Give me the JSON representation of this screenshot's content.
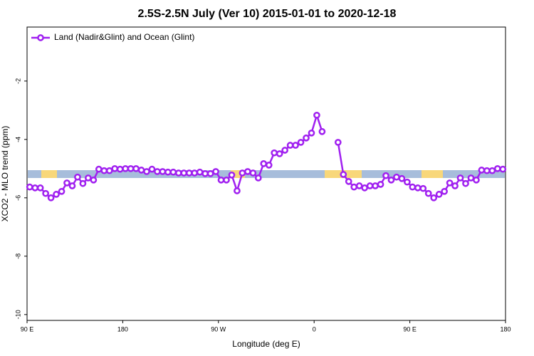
{
  "chart_data": {
    "type": "line",
    "title": "2.5S-2.5N July (Ver 10)   2015-01-01 to 2020-12-18",
    "xlabel": "Longitude (deg E)",
    "ylabel": "XCO2 - MLO trend (ppm)",
    "x": [
      92.5,
      97.5,
      102.5,
      107.5,
      112.5,
      117.5,
      122.5,
      127.5,
      132.5,
      137.5,
      142.5,
      147.5,
      152.5,
      157.5,
      162.5,
      167.5,
      172.5,
      177.5,
      182.5,
      187.5,
      192.5,
      197.5,
      202.5,
      207.5,
      212.5,
      217.5,
      222.5,
      227.5,
      232.5,
      237.5,
      242.5,
      247.5,
      252.5,
      257.5,
      262.5,
      267.5,
      272.5,
      277.5,
      282.5,
      287.5,
      292.5,
      297.5,
      302.5,
      307.5,
      312.5,
      317.5,
      322.5,
      327.5,
      332.5,
      337.5,
      342.5,
      347.5,
      352.5,
      357.5,
      362.5,
      367.5,
      372.5,
      377.5,
      382.5,
      387.5,
      392.5,
      397.5,
      402.5,
      407.5,
      412.5,
      417.5,
      422.5,
      427.5,
      432.5,
      437.5,
      442.5,
      447.5,
      452.5,
      457.5,
      462.5,
      467.5,
      472.5,
      477.5,
      482.5,
      487.5,
      492.5,
      497.5,
      502.5,
      507.5,
      512.5,
      517.5,
      522.5,
      527.5,
      532.5,
      537.5
    ],
    "series": [
      {
        "name": "Land (Nadir&Glint) and Ocean (Glint)",
        "color": "#a020f0",
        "values": [
          -5.63,
          -5.66,
          -5.66,
          -5.85,
          -6.0,
          -5.88,
          -5.78,
          -5.49,
          -5.59,
          -5.29,
          -5.51,
          -5.32,
          -5.39,
          -5.02,
          -5.07,
          -5.07,
          -5.0,
          -5.02,
          -5.0,
          -5.0,
          -5.0,
          -5.05,
          -5.1,
          -5.02,
          -5.1,
          -5.1,
          -5.12,
          -5.12,
          -5.15,
          -5.15,
          -5.15,
          -5.15,
          -5.12,
          -5.17,
          -5.17,
          -5.1,
          -5.39,
          -5.39,
          -5.22,
          -5.76,
          -5.15,
          -5.1,
          -5.15,
          -5.32,
          -4.83,
          -4.88,
          -4.46,
          -4.49,
          -4.37,
          -4.2,
          -4.2,
          -4.1,
          -3.95,
          -3.78,
          -3.17,
          -3.73,
          null,
          null,
          -4.1,
          -5.2,
          -5.44,
          -5.63,
          -5.59,
          -5.66,
          -5.59,
          -5.59,
          -5.54,
          -5.24,
          -5.39,
          -5.29,
          -5.34,
          -5.46,
          -5.63,
          -5.66,
          -5.68,
          -5.85,
          -6.0,
          -5.88,
          -5.78,
          -5.49,
          -5.59,
          -5.32,
          -5.51,
          -5.32,
          -5.39,
          -5.05,
          -5.07,
          -5.07,
          -5.0,
          -5.02
        ]
      }
    ],
    "xlim": [
      90,
      540
    ],
    "xticks": [
      {
        "value": 90,
        "label": "90 E"
      },
      180,
      {
        "value": 270,
        "label": "90 W"
      },
      {
        "value": 360,
        "label": "0"
      },
      {
        "value": 450,
        "label": "90 E"
      },
      {
        "value": 540,
        "label": "180"
      }
    ],
    "ylim": [
      -10.2,
      -0.15
    ],
    "yticks": [
      -2,
      -4,
      -6,
      -8,
      -10
    ],
    "legend": "upper left",
    "grid": false
  }
}
